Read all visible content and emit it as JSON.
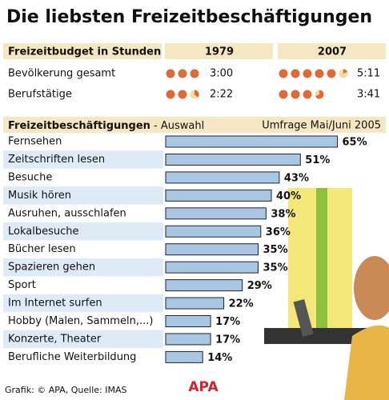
{
  "title": "Die liebsten Freizeitbeschäftigungen",
  "chart_data": [
    {
      "type": "pictogram",
      "title": "Freizeitbudget in Stunden",
      "color": "#e06a35",
      "categories": [
        "Bevölkerung gesamt",
        "Berufstätige"
      ],
      "series": [
        {
          "name": "1979",
          "values": [
            3,
            2.367
          ],
          "value_labels": [
            "3:00",
            "2:22"
          ]
        },
        {
          "name": "2007",
          "values": [
            5.183,
            3.683
          ],
          "value_labels": [
            "5:11",
            "3:41"
          ]
        }
      ]
    },
    {
      "type": "bar",
      "title": "Freizeitbeschäftigungen",
      "subtitle": "- Auswahl",
      "note": "Umfrage Mai/Juni 2005",
      "color": "#a9c6e2",
      "categories": [
        "Fernsehen",
        "Zeitschriften lesen",
        "Besuche",
        "Musik hören",
        "Ausruhen, ausschlafen",
        "Lokalbesuche",
        "Bücher lesen",
        "Spazieren gehen",
        "Sport",
        "Im Internet surfen",
        "Hobby (Malen, Sammeln,...)",
        "Konzerte, Theater",
        "Berufliche Weiterbildung"
      ],
      "values": [
        65,
        51,
        43,
        40,
        38,
        36,
        35,
        35,
        29,
        22,
        17,
        17,
        14
      ],
      "value_labels": [
        "65%",
        "51%",
        "43%",
        "40%",
        "38%",
        "36%",
        "35%",
        "35%",
        "29%",
        "22%",
        "17%",
        "17%",
        "14%"
      ]
    }
  ],
  "source": "Grafik: © APA, Quelle: IMAS",
  "logo": "APA"
}
